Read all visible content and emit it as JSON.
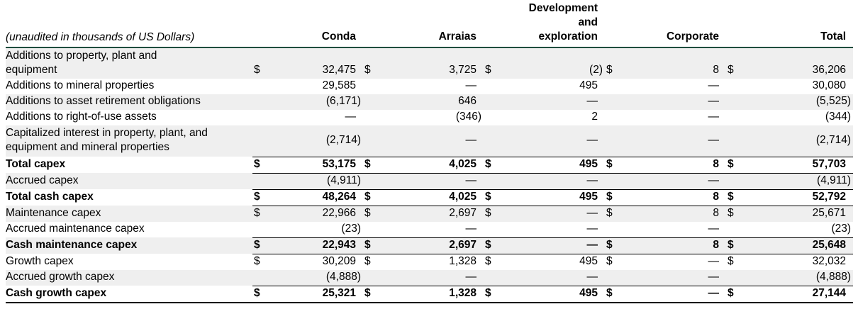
{
  "header": {
    "note": "(unaudited in thousands of US Dollars)",
    "columns": [
      "Conda",
      "Arraias",
      "Development\nand\nexploration",
      "Corporate",
      "Total"
    ]
  },
  "table": {
    "rows": [
      {
        "label": "Additions to property, plant and\nequipment",
        "bold": false,
        "shaded": true,
        "tall": true,
        "mid": false,
        "rule": null,
        "cells": [
          [
            "$",
            "32,475"
          ],
          [
            "$",
            "3,725"
          ],
          [
            "$",
            "(2)"
          ],
          [
            "$",
            "8"
          ],
          [
            "$",
            "36,206"
          ]
        ]
      },
      {
        "label": "Additions to mineral properties",
        "bold": false,
        "shaded": false,
        "tall": false,
        "mid": false,
        "rule": null,
        "cells": [
          [
            "",
            "29,585"
          ],
          [
            "",
            "—"
          ],
          [
            "",
            "495"
          ],
          [
            "",
            "—"
          ],
          [
            "",
            "30,080"
          ]
        ]
      },
      {
        "label": "Additions to asset retirement obligations",
        "bold": false,
        "shaded": true,
        "tall": false,
        "mid": false,
        "rule": null,
        "cells": [
          [
            "",
            "(6,171)"
          ],
          [
            "",
            "646"
          ],
          [
            "",
            "—"
          ],
          [
            "",
            "—"
          ],
          [
            "",
            "(5,525)"
          ]
        ]
      },
      {
        "label": "Additions to right-of-use assets",
        "bold": false,
        "shaded": false,
        "tall": false,
        "mid": false,
        "rule": null,
        "cells": [
          [
            "",
            "—"
          ],
          [
            "",
            "(346)"
          ],
          [
            "",
            "2"
          ],
          [
            "",
            "—"
          ],
          [
            "",
            "(344)"
          ]
        ]
      },
      {
        "label": "Capitalized interest in property, plant, and\nequipment and mineral properties",
        "bold": false,
        "shaded": true,
        "tall": true,
        "mid": true,
        "rule": "numeric",
        "cells": [
          [
            "",
            "(2,714)"
          ],
          [
            "",
            "—"
          ],
          [
            "",
            "—"
          ],
          [
            "",
            "—"
          ],
          [
            "",
            "(2,714)"
          ]
        ]
      },
      {
        "label": "Total capex",
        "bold": true,
        "shaded": false,
        "tall": false,
        "mid": false,
        "rule": "numeric",
        "cells": [
          [
            "$",
            "53,175"
          ],
          [
            "$",
            "4,025"
          ],
          [
            "$",
            "495"
          ],
          [
            "$",
            "8"
          ],
          [
            "$",
            "57,703"
          ]
        ]
      },
      {
        "label": "Accrued capex",
        "bold": false,
        "shaded": true,
        "tall": false,
        "mid": false,
        "rule": "numeric",
        "cells": [
          [
            "",
            "(4,911)"
          ],
          [
            "",
            "—"
          ],
          [
            "",
            "—"
          ],
          [
            "",
            "—"
          ],
          [
            "",
            "(4,911)"
          ]
        ]
      },
      {
        "label": "Total cash capex",
        "bold": true,
        "shaded": false,
        "tall": false,
        "mid": false,
        "rule": "numeric",
        "cells": [
          [
            "$",
            "48,264"
          ],
          [
            "$",
            "4,025"
          ],
          [
            "$",
            "495"
          ],
          [
            "$",
            "8"
          ],
          [
            "$",
            "52,792"
          ]
        ]
      },
      {
        "label": "Maintenance capex",
        "bold": false,
        "shaded": true,
        "tall": false,
        "mid": false,
        "rule": null,
        "cells": [
          [
            "$",
            "22,966"
          ],
          [
            "$",
            "2,697"
          ],
          [
            "$",
            "—"
          ],
          [
            "$",
            "8"
          ],
          [
            "$",
            "25,671"
          ]
        ]
      },
      {
        "label": "Accrued maintenance capex",
        "bold": false,
        "shaded": false,
        "tall": false,
        "mid": false,
        "rule": "numeric",
        "cells": [
          [
            "",
            "(23)"
          ],
          [
            "",
            "—"
          ],
          [
            "",
            "—"
          ],
          [
            "",
            "—"
          ],
          [
            "",
            "(23)"
          ]
        ]
      },
      {
        "label": "Cash maintenance capex",
        "bold": true,
        "shaded": true,
        "tall": false,
        "mid": false,
        "rule": "numeric",
        "cells": [
          [
            "$",
            "22,943"
          ],
          [
            "$",
            "2,697"
          ],
          [
            "$",
            "—"
          ],
          [
            "$",
            "8"
          ],
          [
            "$",
            "25,648"
          ]
        ]
      },
      {
        "label": "Growth capex",
        "bold": false,
        "shaded": false,
        "tall": false,
        "mid": false,
        "rule": null,
        "cells": [
          [
            "$",
            "30,209"
          ],
          [
            "$",
            "1,328"
          ],
          [
            "$",
            "495"
          ],
          [
            "$",
            "—"
          ],
          [
            "$",
            "32,032"
          ]
        ]
      },
      {
        "label": "Accrued growth capex",
        "bold": false,
        "shaded": true,
        "tall": false,
        "mid": false,
        "rule": "numeric",
        "cells": [
          [
            "",
            "(4,888)"
          ],
          [
            "",
            "—"
          ],
          [
            "",
            "—"
          ],
          [
            "",
            "—"
          ],
          [
            "",
            "(4,888)"
          ]
        ]
      },
      {
        "label": "Cash growth capex",
        "bold": true,
        "shaded": false,
        "tall": false,
        "mid": false,
        "rule": "full",
        "cells": [
          [
            "$",
            "25,321"
          ],
          [
            "$",
            "1,328"
          ],
          [
            "$",
            "495"
          ],
          [
            "$",
            "—"
          ],
          [
            "$",
            "27,144"
          ]
        ]
      }
    ]
  },
  "colors": {
    "stripe": "#efefef",
    "header_rule": "#1e4d3e",
    "rule": "#000000"
  }
}
